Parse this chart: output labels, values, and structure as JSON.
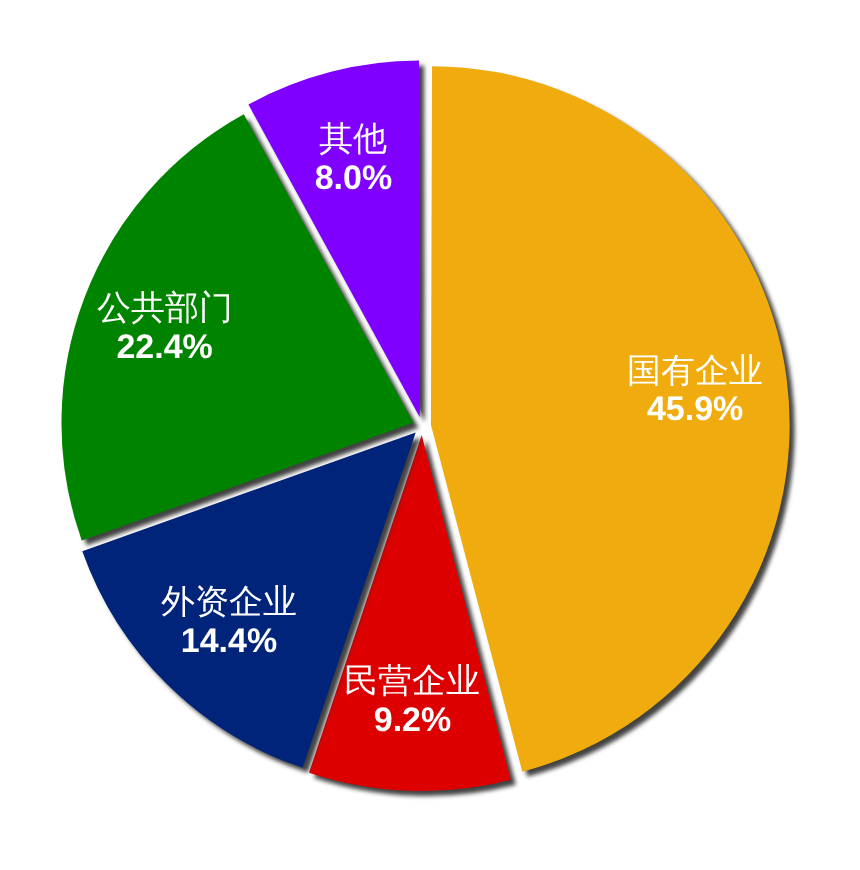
{
  "chart_data": {
    "type": "pie",
    "categories": [
      "国有企业",
      "民营企业",
      "外资企业",
      "公共部门",
      "其他"
    ],
    "values": [
      45.9,
      9.2,
      14.4,
      22.4,
      8.0
    ],
    "value_labels": [
      "45.9%",
      "9.2%",
      "14.4%",
      "22.4%",
      "8.0%"
    ],
    "colors": [
      "#f0ac0e",
      "#dc0000",
      "#00247a",
      "#008400",
      "#8000ff"
    ]
  }
}
